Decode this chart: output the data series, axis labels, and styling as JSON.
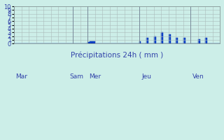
{
  "xlabel": "Précipitations 24h ( mm )",
  "ylim": [
    0,
    10
  ],
  "yticks": [
    0,
    1,
    2,
    3,
    4,
    5,
    6,
    7,
    8,
    9,
    10
  ],
  "background_color": "#cceee8",
  "bar_color": "#1144cc",
  "bar_edge_color": "#0033aa",
  "grid_color": "#aabbbb",
  "tick_label_color": "#3344aa",
  "xlabel_color": "#3344aa",
  "day_labels": [
    "Mar",
    "Sam",
    "Mer",
    "Jeu",
    "Ven"
  ],
  "day_line_positions": [
    0,
    32,
    40,
    68,
    96
  ],
  "day_tick_positions": [
    4,
    34,
    44,
    72,
    100
  ],
  "n_bars": 112,
  "bar_width": 1.0,
  "bar_values_sparse": {
    "40": 0.4,
    "41": 0.55,
    "42": 0.55,
    "43": 0.6,
    "68": 0.6,
    "72": 1.5,
    "76": 2.0,
    "80": 3.0,
    "84": 2.5,
    "88": 1.5,
    "92": 1.5,
    "96": 0.0,
    "100": 1.2,
    "104": 1.5
  },
  "figsize": [
    3.2,
    2.0
  ],
  "dpi": 100
}
